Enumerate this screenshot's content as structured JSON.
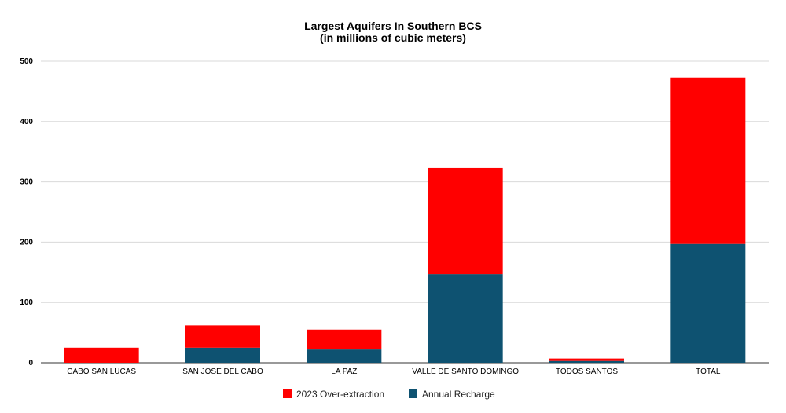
{
  "chart_data": {
    "type": "bar",
    "stacked": true,
    "title": "Largest Aquifers In Southern BCS",
    "subtitle": "(in millions of cubic meters)",
    "categories": [
      "CABO SAN LUCAS",
      "SAN JOSE DEL CABO",
      "LA PAZ",
      "VALLE DE SANTO DOMINGO",
      "TODOS SANTOS",
      "TOTAL"
    ],
    "series": [
      {
        "name": "Annual Recharge",
        "color": "#0e5271",
        "values": [
          0,
          25,
          22,
          147,
          3,
          197
        ]
      },
      {
        "name": "2023 Over-extraction",
        "color": "#ff0000",
        "values": [
          25,
          37,
          33,
          176,
          4,
          276
        ]
      }
    ],
    "legend_order": [
      "2023 Over-extraction",
      "Annual Recharge"
    ],
    "ylim": [
      0,
      500
    ],
    "yticks": [
      0,
      100,
      200,
      300,
      400,
      500
    ],
    "grid": true,
    "legend": "bottom"
  }
}
